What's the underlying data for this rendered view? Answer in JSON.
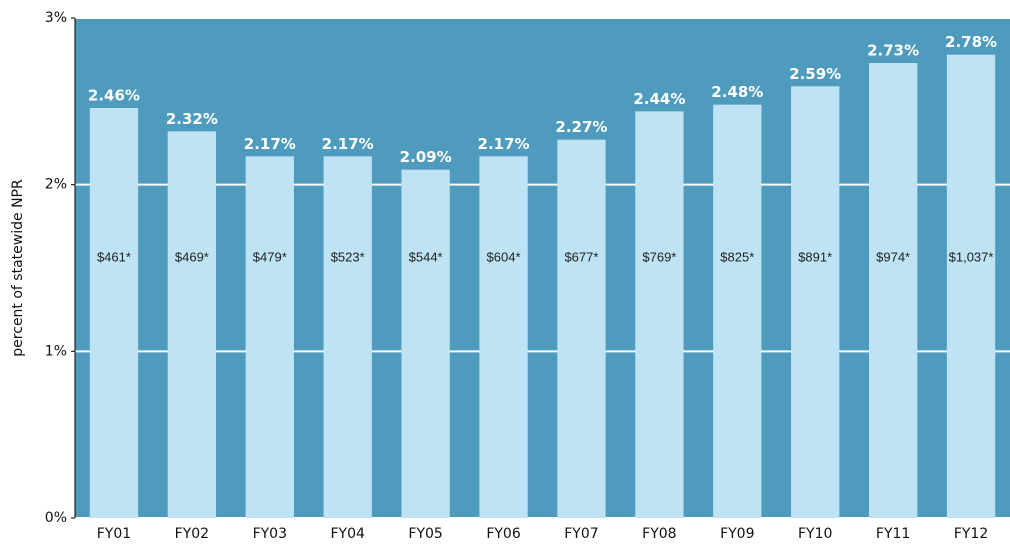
{
  "chart_data": {
    "type": "bar",
    "y_label": "percent of statewide NPR",
    "categories": [
      "FY01",
      "FY02",
      "FY03",
      "FY04",
      "FY05",
      "FY06",
      "FY07",
      "FY08",
      "FY09",
      "FY10",
      "FY11",
      "FY12"
    ],
    "values": [
      2.46,
      2.32,
      2.17,
      2.17,
      2.09,
      2.17,
      2.27,
      2.44,
      2.48,
      2.59,
      2.73,
      2.78
    ],
    "value_labels": [
      "2.46%",
      "2.32%",
      "2.17%",
      "2.17%",
      "2.09%",
      "2.17%",
      "2.27%",
      "2.44%",
      "2.48%",
      "2.59%",
      "2.73%",
      "2.78%"
    ],
    "amount_labels": [
      "$461*",
      "$469*",
      "$479*",
      "$523*",
      "$544*",
      "$604*",
      "$677*",
      "$769*",
      "$825*",
      "$891*",
      "$974*",
      "$1,037*"
    ],
    "color": "#bde3f5",
    "background": "#4f9bbd",
    "ylim": [
      0,
      3
    ],
    "yticks": [
      {
        "value": 0,
        "label": "0%"
      },
      {
        "value": 1,
        "label": "1%"
      },
      {
        "value": 2,
        "label": "2%"
      },
      {
        "value": 3,
        "label": "3%"
      }
    ],
    "grid": true
  }
}
